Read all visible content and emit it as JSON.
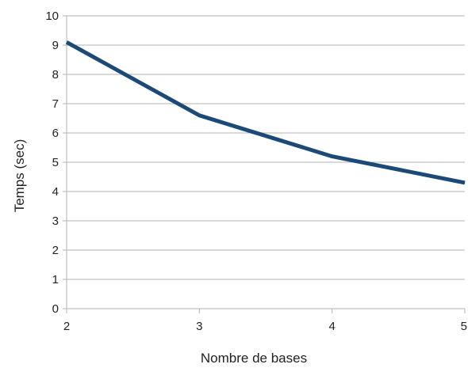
{
  "chart_data": {
    "type": "line",
    "xlabel": "Nombre de bases",
    "ylabel": "Temps (sec)",
    "x": [
      2,
      3,
      4,
      5
    ],
    "x_ticks": [
      "2",
      "3",
      "4",
      "5"
    ],
    "y_ticks": [
      "0",
      "1",
      "2",
      "3",
      "4",
      "5",
      "6",
      "7",
      "8",
      "9",
      "10"
    ],
    "xlim": [
      2,
      5
    ],
    "ylim": [
      0,
      10
    ],
    "grid": "horizontal",
    "legend": "none",
    "series": [
      {
        "values": [
          9.1,
          6.6,
          5.2,
          4.3
        ],
        "color": "#1c4a78"
      }
    ]
  }
}
